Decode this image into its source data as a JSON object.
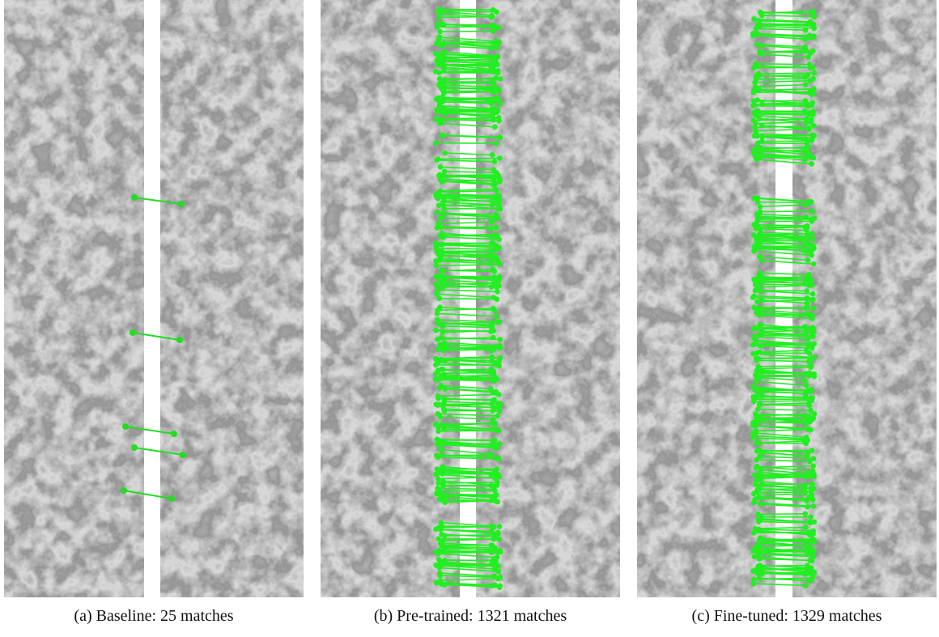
{
  "figure": {
    "panels": [
      {
        "caption": "(a) Baseline: 25 matches"
      },
      {
        "caption": "(b) Pre-trained: 1321 matches"
      },
      {
        "caption": "(c) Fine-tuned: 1329 matches"
      }
    ]
  }
}
